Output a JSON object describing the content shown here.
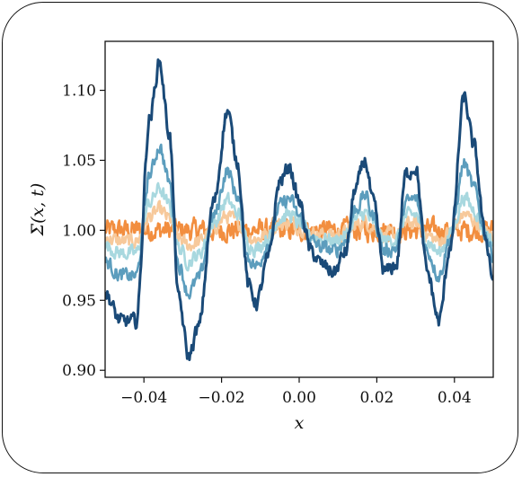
{
  "chart_data": {
    "type": "line",
    "title": "",
    "xlabel": "x",
    "ylabel": "Σ(x, t)",
    "xlim": [
      -0.05,
      0.05
    ],
    "ylim": [
      0.895,
      1.135
    ],
    "xticks": [
      -0.04,
      -0.02,
      0.0,
      0.02,
      0.04
    ],
    "xtick_labels": [
      "−0.04",
      "−0.02",
      "0.00",
      "0.02",
      "0.04"
    ],
    "yticks": [
      0.9,
      0.95,
      1.0,
      1.05,
      1.1
    ],
    "ytick_labels": [
      "0.90",
      "0.95",
      "1.00",
      "1.05",
      "1.10"
    ],
    "grid": false,
    "series": [
      {
        "color": "#f28e3f",
        "amplitude": 0.0,
        "noise": 0.012
      },
      {
        "color": "#f7c99b",
        "amplitude": 0.12,
        "noise": 0.008
      },
      {
        "color": "#a8d8df",
        "amplitude": 0.25,
        "noise": 0.008
      },
      {
        "color": "#5c9dbd",
        "amplitude": 0.5,
        "noise": 0.008
      },
      {
        "color": "#1a4a78",
        "amplitude": 1.0,
        "noise": 0.008
      }
    ],
    "profile_x": [
      -0.05,
      -0.046,
      -0.042,
      -0.0385,
      -0.036,
      -0.0335,
      -0.031,
      -0.0285,
      -0.026,
      -0.022,
      -0.0185,
      -0.016,
      -0.013,
      -0.011,
      -0.008,
      -0.005,
      -0.0025,
      0.0,
      0.003,
      0.006,
      0.009,
      0.012,
      0.0145,
      0.017,
      0.019,
      0.022,
      0.025,
      0.0275,
      0.03,
      0.033,
      0.036,
      0.039,
      0.0425,
      0.045,
      0.048,
      0.05
    ],
    "profile_y": [
      0.955,
      0.935,
      0.935,
      1.08,
      1.12,
      1.07,
      0.95,
      0.91,
      0.93,
      1.02,
      1.085,
      1.05,
      0.96,
      0.948,
      0.98,
      1.035,
      1.045,
      1.02,
      0.985,
      0.975,
      0.97,
      0.985,
      1.03,
      1.05,
      1.02,
      0.97,
      0.975,
      1.04,
      1.045,
      0.97,
      0.935,
      0.99,
      1.095,
      1.06,
      0.995,
      0.965
    ]
  }
}
